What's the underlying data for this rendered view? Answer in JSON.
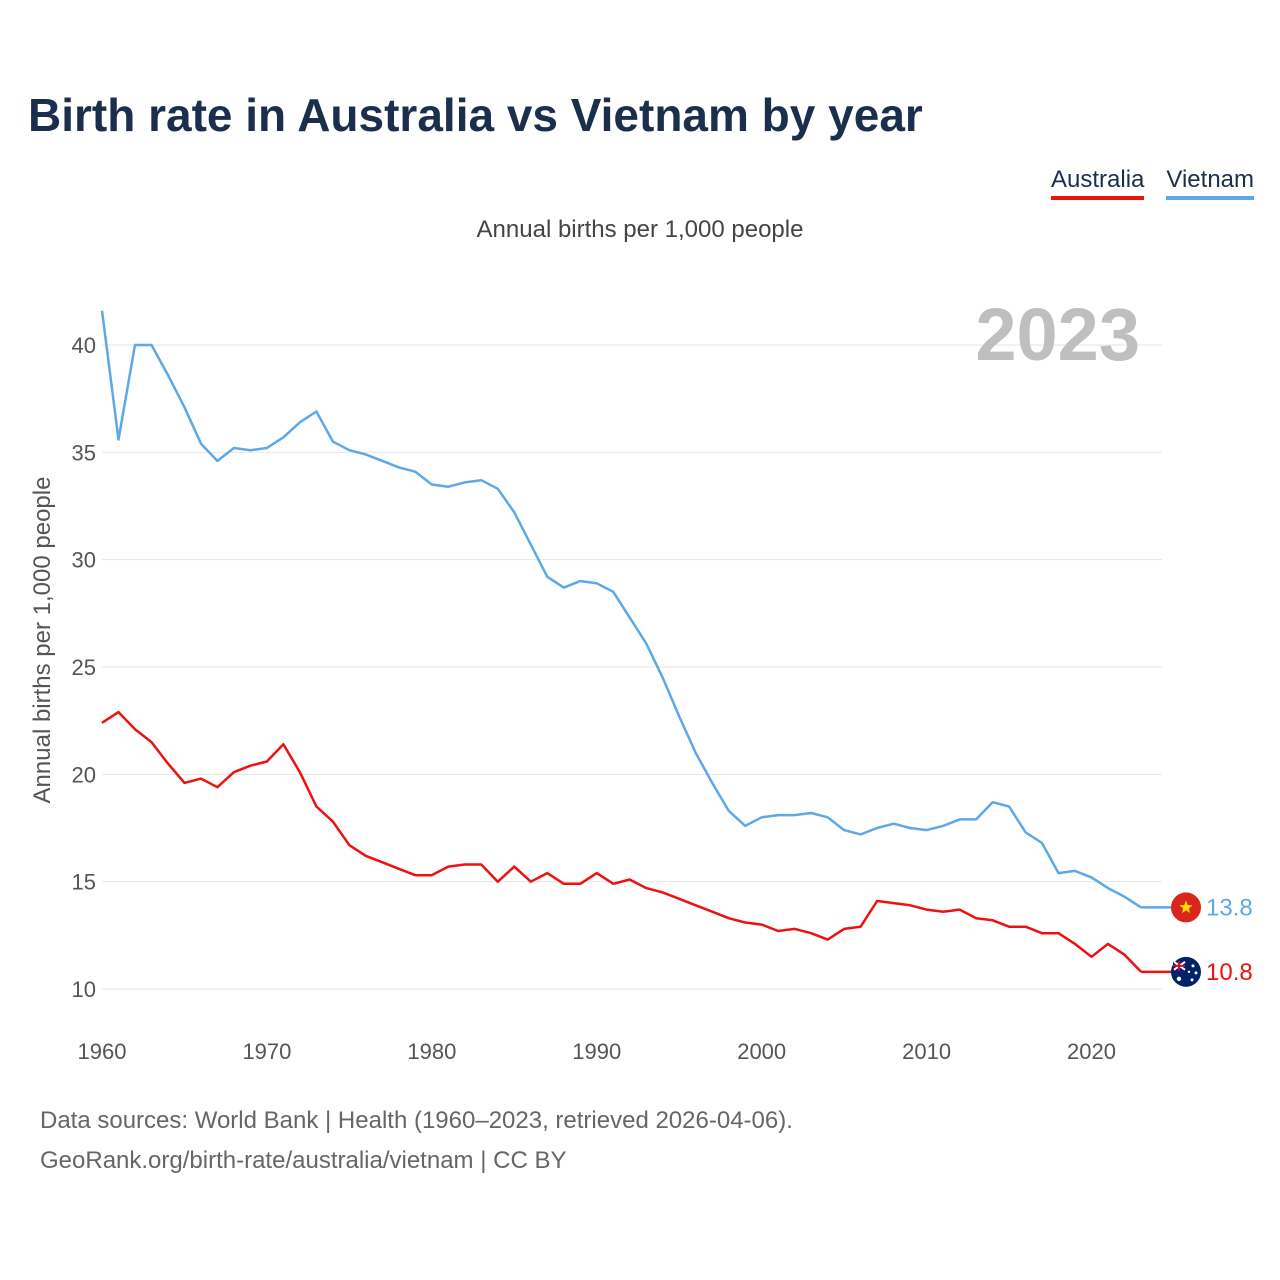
{
  "title": "Birth rate in Australia vs Vietnam by year",
  "subtitle": "Annual births per 1,000 people",
  "legend": [
    {
      "name": "Australia",
      "color": "#ee1111"
    },
    {
      "name": "Vietnam",
      "color": "#5fa8e8"
    }
  ],
  "footer": {
    "line1": "Data sources: World Bank | Health (1960–2023, retrieved 2026-04-06).",
    "line2": "GeoRank.org/birth-rate/australia/vietnam | CC BY"
  },
  "chart_data": {
    "type": "line",
    "title": "Birth rate in Australia vs Vietnam by year",
    "ylabel": "Annual births per 1,000 people",
    "xlabel": "",
    "year_watermark": "2023",
    "xlim": [
      1960,
      2023
    ],
    "ylim": [
      8.5,
      42
    ],
    "xticks": [
      1960,
      1970,
      1980,
      1990,
      2000,
      2010,
      2020
    ],
    "yticks": [
      10,
      15,
      20,
      25,
      30,
      35,
      40
    ],
    "grid": true,
    "x": [
      1960,
      1961,
      1962,
      1963,
      1964,
      1965,
      1966,
      1967,
      1968,
      1969,
      1970,
      1971,
      1972,
      1973,
      1974,
      1975,
      1976,
      1977,
      1978,
      1979,
      1980,
      1981,
      1982,
      1983,
      1984,
      1985,
      1986,
      1987,
      1988,
      1989,
      1990,
      1991,
      1992,
      1993,
      1994,
      1995,
      1996,
      1997,
      1998,
      1999,
      2000,
      2001,
      2002,
      2003,
      2004,
      2005,
      2006,
      2007,
      2008,
      2009,
      2010,
      2011,
      2012,
      2013,
      2014,
      2015,
      2016,
      2017,
      2018,
      2019,
      2020,
      2021,
      2022,
      2023
    ],
    "series": [
      {
        "name": "Australia",
        "color": "#ee1111",
        "end_label": "10.8",
        "flag": "australia-flag-icon",
        "values": [
          22.4,
          22.9,
          22.1,
          21.5,
          20.5,
          19.6,
          19.8,
          19.4,
          20.1,
          20.4,
          20.6,
          21.4,
          20.1,
          18.5,
          17.8,
          16.7,
          16.2,
          15.9,
          15.6,
          15.3,
          15.3,
          15.7,
          15.8,
          15.8,
          15.0,
          15.7,
          15.0,
          15.4,
          14.9,
          14.9,
          15.4,
          14.9,
          15.1,
          14.7,
          14.5,
          14.2,
          13.9,
          13.6,
          13.3,
          13.1,
          13.0,
          12.7,
          12.8,
          12.6,
          12.3,
          12.8,
          12.9,
          14.1,
          14.0,
          13.9,
          13.7,
          13.6,
          13.7,
          13.3,
          13.2,
          12.9,
          12.9,
          12.6,
          12.6,
          12.1,
          11.5,
          12.1,
          11.6,
          10.8
        ]
      },
      {
        "name": "Vietnam",
        "color": "#5fa8e8",
        "end_label": "13.8",
        "flag": "vietnam-flag-icon",
        "values": [
          41.6,
          35.6,
          40.0,
          40.0,
          38.6,
          37.1,
          35.4,
          34.6,
          35.2,
          35.1,
          35.2,
          35.7,
          36.4,
          36.9,
          35.5,
          35.1,
          34.9,
          34.6,
          34.3,
          34.1,
          33.5,
          33.4,
          33.6,
          33.7,
          33.3,
          32.2,
          30.7,
          29.2,
          28.7,
          29.0,
          28.9,
          28.5,
          27.3,
          26.1,
          24.5,
          22.7,
          21.0,
          19.6,
          18.3,
          17.6,
          18.0,
          18.1,
          18.1,
          18.2,
          18.0,
          17.4,
          17.2,
          17.5,
          17.7,
          17.5,
          17.4,
          17.6,
          17.9,
          17.9,
          18.7,
          18.5,
          17.3,
          16.8,
          15.4,
          15.5,
          15.2,
          14.7,
          14.3,
          13.8
        ]
      }
    ]
  }
}
